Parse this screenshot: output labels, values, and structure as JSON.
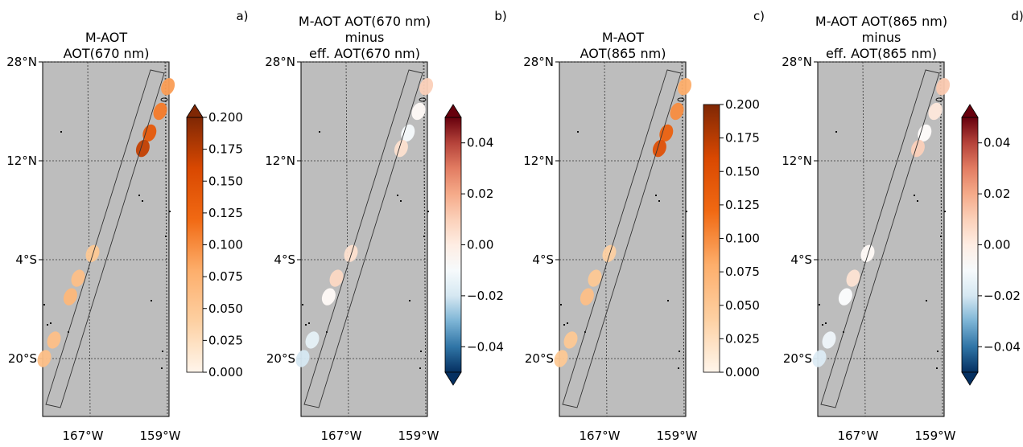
{
  "chart_data": [
    {
      "type": "map",
      "panel_label": "a)",
      "title_lines": [
        "M-AOT",
        "AOT(670 nm)"
      ],
      "lat_ticks": [
        "28°N",
        "12°N",
        "4°S",
        "20°S"
      ],
      "lon_ticks": [
        "167°W",
        "159°W"
      ],
      "lat_values": [
        28,
        12,
        -4,
        -20
      ],
      "lon_values": [
        -167,
        -159
      ],
      "colormap": "Oranges",
      "colorbar_ticks": [
        "0.200",
        "0.175",
        "0.150",
        "0.125",
        "0.100",
        "0.075",
        "0.050",
        "0.025",
        "0.000"
      ],
      "colorbar_range": [
        0.0,
        0.2
      ],
      "extend": "max",
      "aot_clusters": [
        {
          "lat": 24.0,
          "lon": -158.7,
          "value": 0.09
        },
        {
          "lat": 20.0,
          "lon": -159.5,
          "value": 0.11
        },
        {
          "lat": 16.5,
          "lon": -160.6,
          "value": 0.14
        },
        {
          "lat": 14.0,
          "lon": -161.3,
          "value": 0.17
        },
        {
          "lat": -3.0,
          "lon": -166.5,
          "value": 0.05
        },
        {
          "lat": -7.0,
          "lon": -168.0,
          "value": 0.06
        },
        {
          "lat": -10.0,
          "lon": -168.8,
          "value": 0.07
        },
        {
          "lat": -17.0,
          "lon": -170.5,
          "value": 0.06
        },
        {
          "lat": -20.0,
          "lon": -171.5,
          "value": 0.06
        }
      ]
    },
    {
      "type": "map",
      "panel_label": "b)",
      "title_lines": [
        "M-AOT AOT(670 nm)",
        "minus",
        "eff. AOT(670 nm)"
      ],
      "lat_ticks": [
        "28°N",
        "12°N",
        "4°S",
        "20°S"
      ],
      "lon_ticks": [
        "167°W",
        "159°W"
      ],
      "lat_values": [
        28,
        12,
        -4,
        -20
      ],
      "lon_values": [
        -167,
        -159
      ],
      "colormap": "RdBu_r",
      "colorbar_ticks": [
        "0.04",
        "0.02",
        "0.00",
        "−0.02",
        "−0.04"
      ],
      "colorbar_range": [
        -0.05,
        0.05
      ],
      "extend": "both",
      "aot_clusters": [
        {
          "lat": 24.0,
          "lon": -158.7,
          "value": 0.01
        },
        {
          "lat": 20.0,
          "lon": -159.5,
          "value": -0.005
        },
        {
          "lat": 16.5,
          "lon": -160.6,
          "value": -0.01
        },
        {
          "lat": 14.0,
          "lon": -161.3,
          "value": 0.005
        },
        {
          "lat": -3.0,
          "lon": -166.5,
          "value": 0.005
        },
        {
          "lat": -7.0,
          "lon": -168.0,
          "value": 0.008
        },
        {
          "lat": -10.0,
          "lon": -168.8,
          "value": -0.005
        },
        {
          "lat": -17.0,
          "lon": -170.5,
          "value": -0.015
        },
        {
          "lat": -20.0,
          "lon": -171.5,
          "value": -0.02
        }
      ]
    },
    {
      "type": "map",
      "panel_label": "c)",
      "title_lines": [
        "M-AOT",
        "AOT(865 nm)"
      ],
      "lat_ticks": [
        "28°N",
        "12°N",
        "4°S",
        "20°S"
      ],
      "lon_ticks": [
        "167°W",
        "159°W"
      ],
      "lat_values": [
        28,
        12,
        -4,
        -20
      ],
      "lon_values": [
        -167,
        -159
      ],
      "colormap": "Oranges",
      "colorbar_ticks": [
        "0.200",
        "0.175",
        "0.150",
        "0.125",
        "0.100",
        "0.075",
        "0.050",
        "0.025",
        "0.000"
      ],
      "colorbar_range": [
        0.0,
        0.2
      ],
      "extend": "neither",
      "aot_clusters": [
        {
          "lat": 24.0,
          "lon": -158.7,
          "value": 0.08
        },
        {
          "lat": 20.0,
          "lon": -159.5,
          "value": 0.1
        },
        {
          "lat": 16.5,
          "lon": -160.6,
          "value": 0.13
        },
        {
          "lat": 14.0,
          "lon": -161.3,
          "value": 0.15
        },
        {
          "lat": -3.0,
          "lon": -166.5,
          "value": 0.04
        },
        {
          "lat": -7.0,
          "lon": -168.0,
          "value": 0.05
        },
        {
          "lat": -10.0,
          "lon": -168.8,
          "value": 0.06
        },
        {
          "lat": -17.0,
          "lon": -170.5,
          "value": 0.05
        },
        {
          "lat": -20.0,
          "lon": -171.5,
          "value": 0.05
        }
      ]
    },
    {
      "type": "map",
      "panel_label": "d)",
      "title_lines": [
        "M-AOT AOT(865 nm)",
        "minus",
        "eff. AOT(865 nm)"
      ],
      "lat_ticks": [
        "28°N",
        "12°N",
        "4°S",
        "20°S"
      ],
      "lon_ticks": [
        "167°W",
        "159°W"
      ],
      "lat_values": [
        28,
        12,
        -4,
        -20
      ],
      "lon_values": [
        -167,
        -159
      ],
      "colormap": "RdBu_r",
      "colorbar_ticks": [
        "0.04",
        "0.02",
        "0.00",
        "−0.02",
        "−0.04"
      ],
      "colorbar_range": [
        -0.05,
        0.05
      ],
      "extend": "both",
      "aot_clusters": [
        {
          "lat": 24.0,
          "lon": -158.7,
          "value": 0.012
        },
        {
          "lat": 20.0,
          "lon": -159.5,
          "value": 0.002
        },
        {
          "lat": 16.5,
          "lon": -160.6,
          "value": -0.006
        },
        {
          "lat": 14.0,
          "lon": -161.3,
          "value": 0.01
        },
        {
          "lat": -3.0,
          "lon": -166.5,
          "value": -0.005
        },
        {
          "lat": -7.0,
          "lon": -168.0,
          "value": 0.004
        },
        {
          "lat": -10.0,
          "lon": -168.8,
          "value": -0.008
        },
        {
          "lat": -17.0,
          "lon": -170.5,
          "value": -0.012
        },
        {
          "lat": -20.0,
          "lon": -171.5,
          "value": -0.018
        }
      ]
    }
  ],
  "colors": {
    "ocean": "#bdbdbd",
    "grid": "#333333",
    "swath": "#333333"
  }
}
